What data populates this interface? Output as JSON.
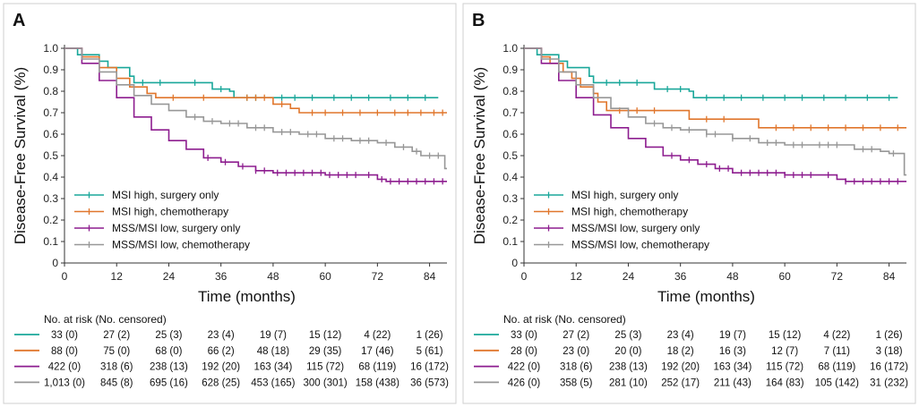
{
  "colors": {
    "msi_high_surgery": "#1aa79a",
    "msi_high_chemo": "#e0762c",
    "mss_low_surgery": "#8d1d8f",
    "mss_low_chemo": "#979797"
  },
  "chart_data": [
    {
      "panel": "A",
      "type": "line",
      "xlabel": "Time (months)",
      "ylabel": "Disease-Free Survival (%)",
      "x_ticks": [
        "0",
        "12",
        "24",
        "36",
        "48",
        "60",
        "72",
        "84"
      ],
      "y_ticks": [
        "0",
        "0.1",
        "0.2",
        "0.3",
        "0.4",
        "0.5",
        "0.6",
        "0.7",
        "0.8",
        "0.9",
        "1.0"
      ],
      "xlim": [
        0,
        88
      ],
      "ylim": [
        0,
        1.0
      ],
      "series": [
        {
          "name": "MSI high, surgery only",
          "color_key": "msi_high_surgery",
          "points": [
            [
              0,
              1.0
            ],
            [
              3,
              0.97
            ],
            [
              8,
              0.94
            ],
            [
              10,
              0.91
            ],
            [
              15,
              0.87
            ],
            [
              16,
              0.84
            ],
            [
              26,
              0.84
            ],
            [
              34,
              0.81
            ],
            [
              38,
              0.8
            ],
            [
              39,
              0.77
            ],
            [
              86,
              0.77
            ]
          ],
          "censors": [
            18,
            22,
            30,
            36,
            42,
            44,
            50,
            53,
            57,
            62,
            66,
            70,
            75,
            79,
            83
          ]
        },
        {
          "name": "MSI high, chemotherapy",
          "color_key": "msi_high_chemo",
          "points": [
            [
              0,
              1.0
            ],
            [
              4,
              0.96
            ],
            [
              8,
              0.91
            ],
            [
              12,
              0.86
            ],
            [
              15,
              0.82
            ],
            [
              19,
              0.79
            ],
            [
              21,
              0.77
            ],
            [
              40,
              0.77
            ],
            [
              48,
              0.74
            ],
            [
              52,
              0.72
            ],
            [
              54,
              0.7
            ],
            [
              88,
              0.7
            ]
          ],
          "censors": [
            25,
            32,
            42,
            44,
            46,
            50,
            57,
            60,
            64,
            68,
            72,
            76,
            79,
            82,
            85,
            87
          ]
        },
        {
          "name": "MSS/MSI low, surgery only",
          "color_key": "mss_low_surgery",
          "points": [
            [
              0,
              1.0
            ],
            [
              4,
              0.93
            ],
            [
              8,
              0.85
            ],
            [
              12,
              0.77
            ],
            [
              16,
              0.68
            ],
            [
              20,
              0.62
            ],
            [
              24,
              0.57
            ],
            [
              28,
              0.53
            ],
            [
              32,
              0.49
            ],
            [
              36,
              0.47
            ],
            [
              40,
              0.45
            ],
            [
              44,
              0.43
            ],
            [
              48,
              0.42
            ],
            [
              60,
              0.41
            ],
            [
              68,
              0.41
            ],
            [
              72,
              0.39
            ],
            [
              74,
              0.38
            ],
            [
              88,
              0.38
            ]
          ],
          "censors": [
            33,
            37,
            41,
            44,
            46,
            49,
            51,
            53,
            55,
            57,
            59,
            61,
            63,
            65,
            67,
            70,
            73,
            75,
            77,
            79,
            81,
            83,
            85,
            87
          ]
        },
        {
          "name": "MSS/MSI low, chemotherapy",
          "color_key": "mss_low_chemo",
          "points": [
            [
              0,
              1.0
            ],
            [
              4,
              0.95
            ],
            [
              8,
              0.89
            ],
            [
              12,
              0.83
            ],
            [
              16,
              0.78
            ],
            [
              20,
              0.74
            ],
            [
              24,
              0.71
            ],
            [
              28,
              0.68
            ],
            [
              32,
              0.66
            ],
            [
              36,
              0.65
            ],
            [
              42,
              0.63
            ],
            [
              48,
              0.61
            ],
            [
              54,
              0.6
            ],
            [
              60,
              0.58
            ],
            [
              66,
              0.57
            ],
            [
              72,
              0.56
            ],
            [
              76,
              0.54
            ],
            [
              80,
              0.52
            ],
            [
              82,
              0.5
            ],
            [
              87,
              0.5
            ],
            [
              87.5,
              0.44
            ],
            [
              88,
              0.44
            ]
          ],
          "censors": [
            30,
            34,
            38,
            40,
            44,
            46,
            50,
            52,
            56,
            58,
            62,
            64,
            68,
            70,
            74,
            78,
            81,
            84,
            86
          ]
        }
      ],
      "risk_table": {
        "title": "No. at risk (No. censored)",
        "rows": [
          {
            "color_key": "msi_high_surgery",
            "cells": [
              "33 (0)",
              "27 (2)",
              "25 (3)",
              "23 (4)",
              "19 (7)",
              "15 (12)",
              "4 (22)",
              "1 (26)"
            ]
          },
          {
            "color_key": "msi_high_chemo",
            "cells": [
              "88 (0)",
              "75 (0)",
              "68 (0)",
              "66 (2)",
              "48 (18)",
              "29 (35)",
              "17 (46)",
              "5 (61)"
            ]
          },
          {
            "color_key": "mss_low_surgery",
            "cells": [
              "422 (0)",
              "318 (6)",
              "238 (13)",
              "192 (20)",
              "163 (34)",
              "115 (72)",
              "68 (119)",
              "16 (172)"
            ]
          },
          {
            "color_key": "mss_low_chemo",
            "cells": [
              "1,013 (0)",
              "845 (8)",
              "695 (16)",
              "628 (25)",
              "453 (165)",
              "300 (301)",
              "158 (438)",
              "36 (573)"
            ]
          }
        ]
      }
    },
    {
      "panel": "B",
      "type": "line",
      "xlabel": "Time (months)",
      "ylabel": "Disease-Free Survival (%)",
      "x_ticks": [
        "0",
        "12",
        "24",
        "36",
        "48",
        "60",
        "72",
        "84"
      ],
      "y_ticks": [
        "0",
        "0.1",
        "0.2",
        "0.3",
        "0.4",
        "0.5",
        "0.6",
        "0.7",
        "0.8",
        "0.9",
        "1.0"
      ],
      "xlim": [
        0,
        88
      ],
      "ylim": [
        0,
        1.0
      ],
      "series": [
        {
          "name": "MSI high, surgery only",
          "color_key": "msi_high_surgery",
          "points": [
            [
              0,
              1.0
            ],
            [
              3,
              0.97
            ],
            [
              8,
              0.94
            ],
            [
              10,
              0.91
            ],
            [
              15,
              0.87
            ],
            [
              16,
              0.84
            ],
            [
              29,
              0.84
            ],
            [
              30,
              0.81
            ],
            [
              38,
              0.8
            ],
            [
              39,
              0.77
            ],
            [
              86,
              0.77
            ]
          ],
          "censors": [
            19,
            22,
            26,
            33,
            36,
            42,
            46,
            50,
            55,
            60,
            64,
            69,
            74,
            79,
            84
          ]
        },
        {
          "name": "MSI high, chemotherapy",
          "color_key": "msi_high_chemo",
          "points": [
            [
              0,
              1.0
            ],
            [
              4,
              0.96
            ],
            [
              6,
              0.93
            ],
            [
              9,
              0.89
            ],
            [
              11,
              0.86
            ],
            [
              13,
              0.82
            ],
            [
              16,
              0.79
            ],
            [
              17,
              0.75
            ],
            [
              19,
              0.71
            ],
            [
              37,
              0.71
            ],
            [
              38,
              0.67
            ],
            [
              53,
              0.67
            ],
            [
              54,
              0.63
            ],
            [
              88,
              0.63
            ]
          ],
          "censors": [
            22,
            26,
            30,
            42,
            46,
            58,
            62,
            66,
            70,
            74,
            78,
            82,
            86
          ]
        },
        {
          "name": "MSS/MSI low, surgery only",
          "color_key": "mss_low_surgery",
          "points": [
            [
              0,
              1.0
            ],
            [
              4,
              0.93
            ],
            [
              8,
              0.85
            ],
            [
              12,
              0.77
            ],
            [
              16,
              0.69
            ],
            [
              20,
              0.63
            ],
            [
              24,
              0.58
            ],
            [
              28,
              0.54
            ],
            [
              32,
              0.5
            ],
            [
              36,
              0.48
            ],
            [
              40,
              0.46
            ],
            [
              44,
              0.44
            ],
            [
              48,
              0.42
            ],
            [
              60,
              0.41
            ],
            [
              68,
              0.41
            ],
            [
              72,
              0.39
            ],
            [
              74,
              0.38
            ],
            [
              88,
              0.38
            ]
          ],
          "censors": [
            34,
            38,
            42,
            45,
            47,
            50,
            52,
            54,
            56,
            58,
            60,
            62,
            64,
            66,
            70,
            74,
            76,
            78,
            80,
            82,
            84,
            86
          ]
        },
        {
          "name": "MSS/MSI low, chemotherapy",
          "color_key": "mss_low_chemo",
          "points": [
            [
              0,
              1.0
            ],
            [
              4,
              0.95
            ],
            [
              8,
              0.89
            ],
            [
              12,
              0.83
            ],
            [
              16,
              0.77
            ],
            [
              20,
              0.72
            ],
            [
              24,
              0.68
            ],
            [
              28,
              0.65
            ],
            [
              32,
              0.63
            ],
            [
              36,
              0.62
            ],
            [
              42,
              0.6
            ],
            [
              48,
              0.58
            ],
            [
              54,
              0.56
            ],
            [
              60,
              0.55
            ],
            [
              66,
              0.55
            ],
            [
              74,
              0.55
            ],
            [
              76,
              0.53
            ],
            [
              82,
              0.52
            ],
            [
              84,
              0.51
            ],
            [
              87,
              0.51
            ],
            [
              87.5,
              0.41
            ],
            [
              88,
              0.41
            ]
          ],
          "censors": [
            30,
            34,
            38,
            42,
            44,
            48,
            52,
            56,
            58,
            62,
            64,
            68,
            70,
            72,
            78,
            80,
            85
          ]
        }
      ],
      "risk_table": {
        "title": "No. at risk (No. censored)",
        "rows": [
          {
            "color_key": "msi_high_surgery",
            "cells": [
              "33 (0)",
              "27 (2)",
              "25 (3)",
              "23 (4)",
              "19 (7)",
              "15 (12)",
              "4 (22)",
              "1 (26)"
            ]
          },
          {
            "color_key": "msi_high_chemo",
            "cells": [
              "28 (0)",
              "23 (0)",
              "20 (0)",
              "18 (2)",
              "16 (3)",
              "12 (7)",
              "7 (11)",
              "3 (18)"
            ]
          },
          {
            "color_key": "mss_low_surgery",
            "cells": [
              "422 (0)",
              "318 (6)",
              "238 (13)",
              "192 (20)",
              "163 (34)",
              "115 (72)",
              "68 (119)",
              "16 (172)"
            ]
          },
          {
            "color_key": "mss_low_chemo",
            "cells": [
              "426 (0)",
              "358 (5)",
              "281 (10)",
              "252 (17)",
              "211 (43)",
              "164 (83)",
              "105 (142)",
              "31 (232)"
            ]
          }
        ]
      }
    }
  ]
}
